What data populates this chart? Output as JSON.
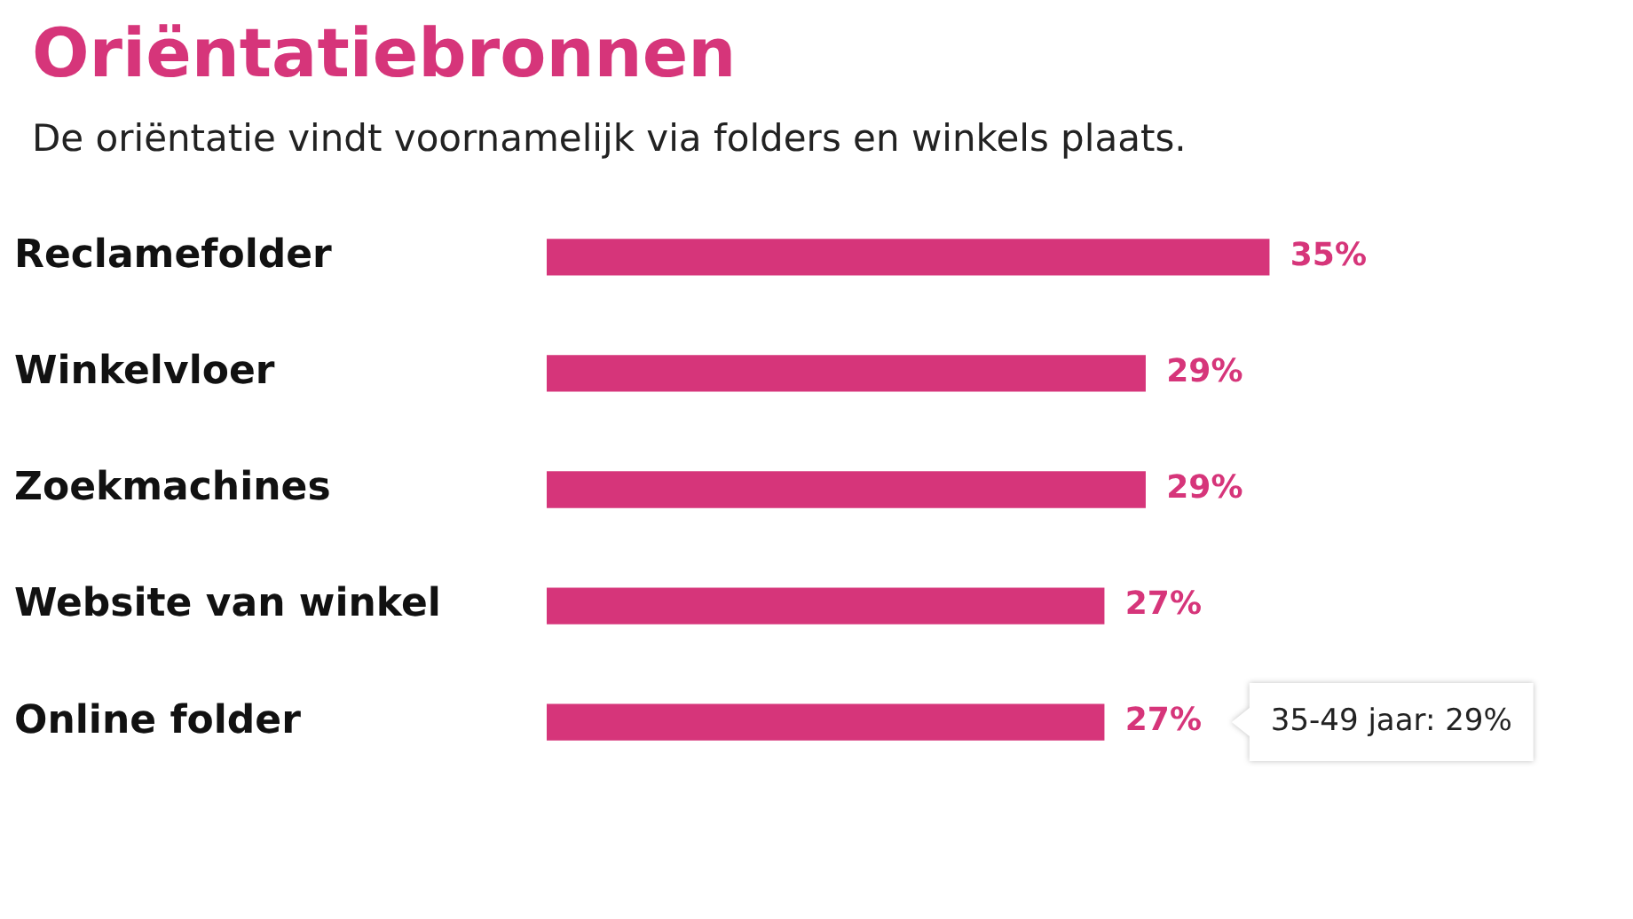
{
  "chart_data": {
    "type": "bar",
    "orientation": "horizontal",
    "title": "Oriëntatiebronnen",
    "subtitle": "De oriëntatie vindt voornamelijk via folders en winkels plaats.",
    "categories": [
      "Reclamefolder",
      "Winkelvloer",
      "Zoekmachines",
      "Website van winkel",
      "Online folder"
    ],
    "values": [
      35,
      29,
      29,
      27,
      27
    ],
    "color": "#d6357a",
    "value_labels": [
      "35%",
      "29%",
      "29%",
      "27%",
      "27%"
    ],
    "annotations": [
      "35-49 jaar: 29%"
    ]
  }
}
